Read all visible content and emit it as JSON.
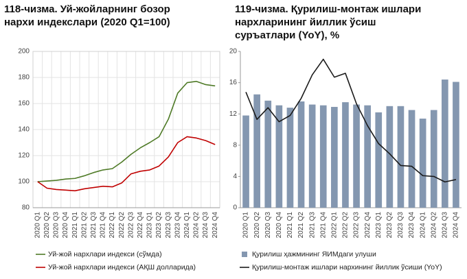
{
  "chart_data": [
    {
      "type": "line",
      "title": [
        "118-чизма. Уй-жойларнинг бозор",
        "нархи индекслари (2020 Q1=100)"
      ],
      "categories": [
        "2020 Q1",
        "2020 Q2",
        "2020 Q3",
        "2020 Q4",
        "2021 Q1",
        "2021 Q2",
        "2021 Q3",
        "2021 Q4",
        "2022 Q1",
        "2022 Q2",
        "2022 Q3",
        "2022 Q4",
        "2023 Q1",
        "2023 Q2",
        "2023 Q3",
        "2023 Q4",
        "2024 Q1",
        "2024 Q2",
        "2024 Q3",
        "2024 Q4"
      ],
      "series": [
        {
          "name": "Уй-жой нархлари индекси (сўмда)",
          "color": "#4e7a26",
          "type": "line",
          "values": [
            100,
            100.5,
            101,
            102,
            102.5,
            104.5,
            107,
            109,
            110,
            115,
            121,
            126,
            130,
            134.5,
            148,
            168,
            176,
            177,
            174.5,
            173.5
          ]
        },
        {
          "name": "Уй-жой нархлари индекси (АҚШ долларида)",
          "color": "#c00000",
          "type": "line",
          "values": [
            100,
            95,
            94,
            93.5,
            93,
            94.5,
            95.5,
            96.5,
            96,
            99,
            106,
            108,
            109,
            112,
            119,
            130,
            134.5,
            133.5,
            131.5,
            128.5
          ]
        }
      ],
      "ylim": [
        80,
        200
      ],
      "yticks": [
        80,
        100,
        120,
        140,
        160,
        180,
        200
      ],
      "grid": true
    },
    {
      "type": "bar",
      "title": [
        "119-чизма. Қурилиш-монтаж ишлари",
        "нархларининг йиллик ўсиш",
        "суръатлари (YoY), %"
      ],
      "categories": [
        "2020 Q1",
        "2020 Q2",
        "2020 Q3",
        "2020 Q4",
        "2021 Q1",
        "2021 Q2",
        "2021 Q3",
        "2021 Q4",
        "2022 Q1",
        "2022 Q2",
        "2022 Q3",
        "2022 Q4",
        "2023 Q1",
        "2023 Q2",
        "2023 Q3",
        "2023 Q4",
        "2024 Q1",
        "2024 Q2",
        "2024 Q3",
        "2024 Q4"
      ],
      "series": [
        {
          "name": "Қурилиш ҳажмининг ЯИМдаги улуши",
          "color": "#8497b0",
          "type": "bar",
          "values": [
            11.8,
            14.5,
            13.7,
            13.1,
            12.8,
            13.6,
            13.2,
            13.1,
            12.9,
            13.5,
            13.2,
            13.1,
            12.2,
            13.0,
            13.0,
            12.5,
            11.4,
            12.5,
            16.4,
            16.1
          ]
        },
        {
          "name": "Қурилиш-монтаж ишлари нархининг йиллик ўсиши (YoY)",
          "color": "#1a1a1a",
          "type": "line",
          "values": [
            14.8,
            11.3,
            12.8,
            11.0,
            11.8,
            14.0,
            17.0,
            19.0,
            16.7,
            17.2,
            13.3,
            10.5,
            8.2,
            6.9,
            5.4,
            5.3,
            4.1,
            4.0,
            3.3,
            3.6
          ]
        }
      ],
      "ylim": [
        0,
        20
      ],
      "yticks": [
        0,
        4,
        8,
        12,
        16,
        20
      ],
      "grid": false
    }
  ]
}
